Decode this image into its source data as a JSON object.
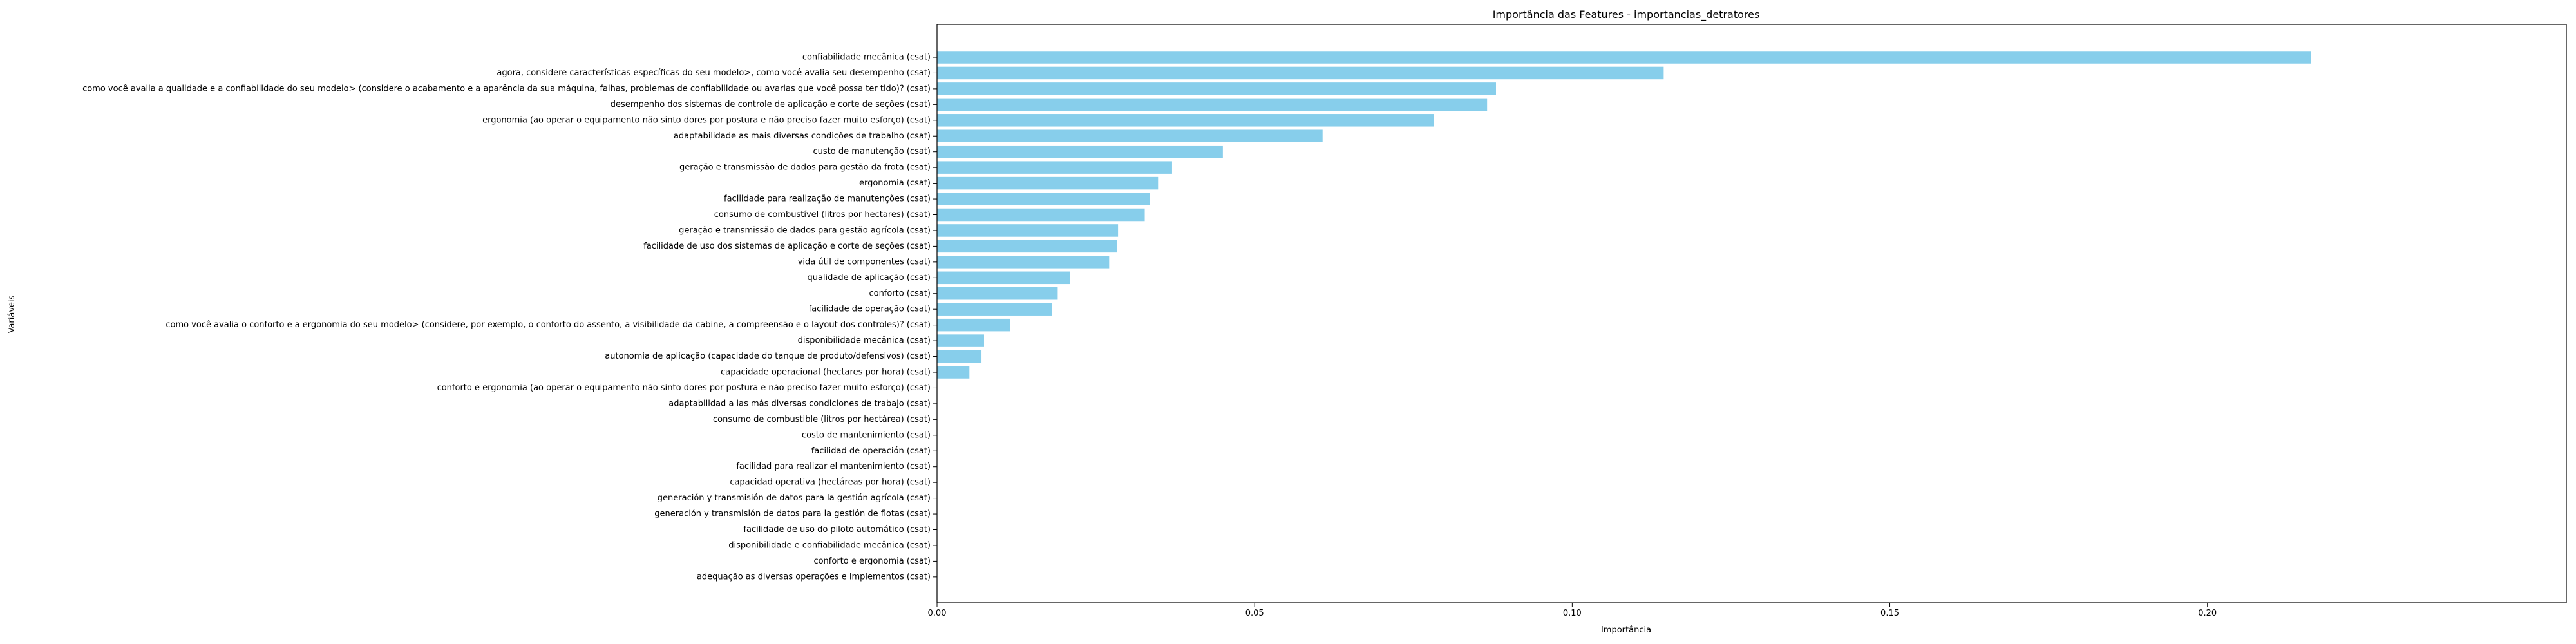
{
  "chart_data": {
    "type": "bar",
    "orientation": "horizontal",
    "title": "Importância das Features - importancias_detratores",
    "xlabel": "Importância",
    "ylabel": "Variáveis",
    "xlim": [
      0,
      0.2565
    ],
    "xticks": [
      0.0,
      0.05,
      0.1,
      0.15,
      0.2
    ],
    "xtick_labels": [
      "0.00",
      "0.05",
      "0.10",
      "0.15",
      "0.20"
    ],
    "bar_color": "#87CEEB",
    "grid": false,
    "legend": "none",
    "categories": [
      "confiabilidade mecânica (csat)",
      "agora, considere características específicas do seu modelo>, como você avalia seu desempenho (csat)",
      "como você avalia a qualidade e a confiabilidade do seu modelo> (considere o acabamento e a aparência da sua máquina, falhas, problemas de confiabilidade ou avarias que você possa ter tido)? (csat)",
      "desempenho dos sistemas de controle de aplicação e corte de seções (csat)",
      "ergonomia (ao operar o equipamento não sinto dores por postura e não preciso fazer muito esforço) (csat)",
      "adaptabilidade as mais diversas condições de trabalho (csat)",
      "custo de manutenção (csat)",
      "geração e transmissão de dados para gestão da frota (csat)",
      "ergonomia (csat)",
      "facilidade para realização de manutenções (csat)",
      "consumo de combustível (litros por hectares) (csat)",
      "geração e transmissão de dados para gestão agrícola (csat)",
      "facilidade de uso dos sistemas de aplicação e corte de seções (csat)",
      "vida útil de componentes (csat)",
      "qualidade de aplicação (csat)",
      "conforto (csat)",
      "facilidade de operação (csat)",
      "como você avalia o conforto e a ergonomia do seu modelo>  (considere, por exemplo, o conforto do assento, a visibilidade da cabine, a compreensão e o layout dos controles)? (csat)",
      "disponibilidade mecânica (csat)",
      "autonomia de aplicação (capacidade do tanque de produto/defensivos) (csat)",
      "capacidade operacional (hectares por hora) (csat)",
      "conforto e ergonomia (ao operar o equipamento não sinto dores por postura e não preciso fazer muito esforço) (csat)",
      "adaptabilidad a las más diversas condiciones de trabajo (csat)",
      "consumo de combustible (litros por hectárea) (csat)",
      "costo de mantenimiento (csat)",
      "facilidad de operación (csat)",
      "facilidad para realizar el mantenimiento (csat)",
      "capacidad operativa (hectáreas por hora) (csat)",
      "generación y transmisión de datos para la gestión agrícola (csat)",
      "generación y transmisión de datos para la gestión de flotas (csat)",
      "facilidade de uso do piloto automático (csat)",
      "disponibilidade e confiabilidade mecânica  (csat)",
      "conforto e ergonomia (csat)",
      "adequação as diversas operações e implementos (csat)"
    ],
    "values": [
      0.2163,
      0.1144,
      0.088,
      0.0866,
      0.0782,
      0.0607,
      0.045,
      0.037,
      0.0348,
      0.0335,
      0.0327,
      0.0285,
      0.0283,
      0.0271,
      0.0209,
      0.019,
      0.0181,
      0.0115,
      0.0074,
      0.007,
      0.0051,
      0,
      0,
      0,
      0,
      0,
      0,
      0,
      0,
      0,
      0,
      0,
      0,
      0
    ]
  }
}
